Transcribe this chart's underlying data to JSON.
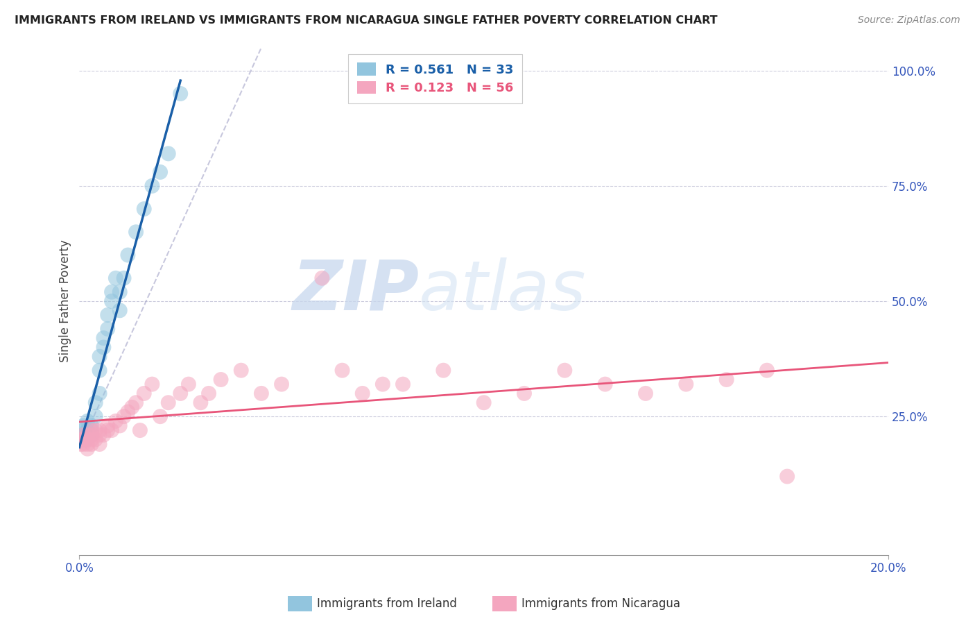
{
  "title": "IMMIGRANTS FROM IRELAND VS IMMIGRANTS FROM NICARAGUA SINGLE FATHER POVERTY CORRELATION CHART",
  "source": "Source: ZipAtlas.com",
  "ylabel": "Single Father Poverty",
  "xlim": [
    0.0,
    0.2
  ],
  "ylim": [
    -0.05,
    1.05
  ],
  "legend_ireland": "Immigrants from Ireland",
  "legend_nicaragua": "Immigrants from Nicaragua",
  "R_ireland": "0.561",
  "N_ireland": "33",
  "R_nicaragua": "0.123",
  "N_nicaragua": "56",
  "color_ireland": "#92c5de",
  "color_nicaragua": "#f4a6bf",
  "color_ireland_line": "#1a5fa8",
  "color_nicaragua_line": "#e8557a",
  "color_ireland_text": "#1a5fa8",
  "color_nicaragua_text": "#e8557a",
  "watermark_zip": "ZIP",
  "watermark_atlas": "atlas",
  "ireland_x": [
    0.0005,
    0.001,
    0.001,
    0.001,
    0.0015,
    0.002,
    0.002,
    0.002,
    0.003,
    0.003,
    0.003,
    0.004,
    0.004,
    0.005,
    0.005,
    0.005,
    0.006,
    0.006,
    0.007,
    0.007,
    0.008,
    0.008,
    0.009,
    0.01,
    0.01,
    0.011,
    0.012,
    0.014,
    0.016,
    0.018,
    0.02,
    0.022,
    0.025
  ],
  "ireland_y": [
    0.2,
    0.21,
    0.22,
    0.23,
    0.2,
    0.22,
    0.22,
    0.24,
    0.21,
    0.22,
    0.23,
    0.25,
    0.28,
    0.3,
    0.35,
    0.38,
    0.4,
    0.42,
    0.44,
    0.47,
    0.5,
    0.52,
    0.55,
    0.48,
    0.52,
    0.55,
    0.6,
    0.65,
    0.7,
    0.75,
    0.78,
    0.82,
    0.95
  ],
  "nicaragua_x": [
    0.0003,
    0.0005,
    0.001,
    0.001,
    0.001,
    0.002,
    0.002,
    0.002,
    0.002,
    0.003,
    0.003,
    0.003,
    0.003,
    0.004,
    0.004,
    0.005,
    0.005,
    0.005,
    0.006,
    0.007,
    0.007,
    0.008,
    0.009,
    0.01,
    0.011,
    0.012,
    0.013,
    0.014,
    0.015,
    0.016,
    0.018,
    0.02,
    0.022,
    0.025,
    0.027,
    0.03,
    0.032,
    0.035,
    0.04,
    0.045,
    0.05,
    0.06,
    0.065,
    0.07,
    0.075,
    0.08,
    0.09,
    0.1,
    0.11,
    0.12,
    0.13,
    0.14,
    0.15,
    0.16,
    0.17,
    0.175
  ],
  "nicaragua_y": [
    0.19,
    0.2,
    0.19,
    0.2,
    0.21,
    0.18,
    0.19,
    0.2,
    0.21,
    0.19,
    0.2,
    0.21,
    0.22,
    0.2,
    0.22,
    0.19,
    0.21,
    0.22,
    0.21,
    0.22,
    0.23,
    0.22,
    0.24,
    0.23,
    0.25,
    0.26,
    0.27,
    0.28,
    0.22,
    0.3,
    0.32,
    0.25,
    0.28,
    0.3,
    0.32,
    0.28,
    0.3,
    0.33,
    0.35,
    0.3,
    0.32,
    0.55,
    0.35,
    0.3,
    0.32,
    0.32,
    0.35,
    0.28,
    0.3,
    0.35,
    0.32,
    0.3,
    0.32,
    0.33,
    0.35,
    0.12
  ]
}
